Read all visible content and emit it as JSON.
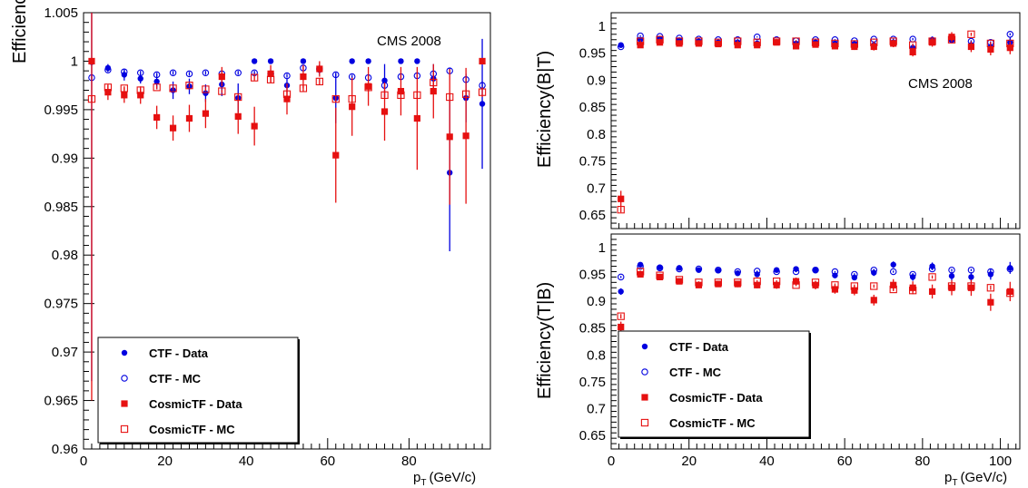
{
  "colors": {
    "ctf": "#0000e0",
    "cosmic": "#e61010",
    "axis": "#000000"
  },
  "chart_data": [
    {
      "type": "scatter",
      "panel": "left",
      "annotation": "CMS 2008",
      "xlabel_main": "p",
      "xlabel_sub": "T",
      "xlabel_units": "(GeV/c)",
      "ylabel": "Efficiency",
      "xlim": [
        0,
        100
      ],
      "ylim": [
        0.96,
        1.005
      ],
      "xticks": [
        0,
        20,
        40,
        60,
        80
      ],
      "xtick_labels": [
        "0",
        "20",
        "40",
        "60",
        "80"
      ],
      "yticks": [
        0.96,
        0.965,
        0.97,
        0.975,
        0.98,
        0.985,
        0.99,
        0.995,
        1,
        1.005
      ],
      "ytick_labels": [
        "0.96",
        "0.965",
        "0.97",
        "0.975",
        "0.98",
        "0.985",
        "0.99",
        "0.995",
        "1",
        "1.005"
      ],
      "legend": "bottom-left",
      "x": [
        2,
        6,
        10,
        14,
        18,
        22,
        26,
        30,
        34,
        38,
        42,
        46,
        50,
        54,
        58,
        62,
        66,
        70,
        74,
        78,
        82,
        86,
        90,
        94,
        98
      ],
      "series": [
        {
          "name": "CTF - Data",
          "marker": "filled-circle",
          "color": "#0000e0",
          "values": [
            0.9999,
            0.9993,
            0.9986,
            0.9982,
            0.9979,
            0.997,
            0.9974,
            0.9967,
            0.9976,
            0.9962,
            1.0,
            1.0,
            0.9975,
            1.0,
            0.9991,
            0.9962,
            1.0,
            1.0,
            0.998,
            1.0,
            1.0,
            0.9982,
            0.9885,
            0.9962,
            0.9956
          ],
          "err": [
            0.0329,
            0.0004,
            0.0006,
            0.0005,
            0.0008,
            0.0009,
            0.0008,
            0.0009,
            0.0012,
            0.0015,
            0.0,
            0.0,
            0.0007,
            0.0,
            0.0005,
            0.0026,
            0.0,
            0.0,
            0.0017,
            0.0,
            0.0,
            0.0015,
            0.0081,
            0.0025,
            0.0067
          ]
        },
        {
          "name": "CTF - MC",
          "marker": "open-circle",
          "color": "#0000e0",
          "values": [
            0.9983,
            0.9991,
            0.9989,
            0.9988,
            0.9986,
            0.9988,
            0.9987,
            0.9988,
            0.9987,
            0.9988,
            0.9988,
            0.9987,
            0.9985,
            0.9993,
            0.9992,
            0.9986,
            0.9984,
            0.9983,
            0.9975,
            0.9984,
            0.9985,
            0.9987,
            0.999,
            0.9981,
            0.9975
          ],
          "err": [
            0.0003,
            0.0002,
            0.0002,
            0.0002,
            0.0002,
            0.0002,
            0.0002,
            0.0002,
            0.0002,
            0.0002,
            0.0002,
            0.0002,
            0.0002,
            0.0002,
            0.0002,
            0.0002,
            0.0002,
            0.0003,
            0.0003,
            0.0003,
            0.0003,
            0.0003,
            0.0003,
            0.0004,
            0.0004
          ]
        },
        {
          "name": "CosmicTF - Data",
          "marker": "filled-square",
          "color": "#e61010",
          "values": [
            1.0,
            0.9968,
            0.9965,
            0.9965,
            0.9942,
            0.9931,
            0.9941,
            0.9946,
            0.9984,
            0.9943,
            0.9933,
            0.9987,
            0.9961,
            0.9984,
            0.9992,
            0.9903,
            0.9953,
            0.9974,
            0.9948,
            0.9969,
            0.9941,
            0.9969,
            0.9922,
            0.9923,
            1.0
          ],
          "err": [
            0.035,
            0.0008,
            0.0008,
            0.0009,
            0.0012,
            0.0013,
            0.0014,
            0.0015,
            0.001,
            0.0018,
            0.002,
            0.0009,
            0.0016,
            0.0012,
            0.0008,
            0.0049,
            0.003,
            0.002,
            0.003,
            0.0025,
            0.0053,
            0.0028,
            0.007,
            0.007,
            0.0
          ]
        },
        {
          "name": "CosmicTF - MC",
          "marker": "open-square",
          "color": "#e61010",
          "values": [
            0.9961,
            0.9973,
            0.9972,
            0.997,
            0.9973,
            0.9972,
            0.9975,
            0.9971,
            0.9969,
            0.9963,
            0.9983,
            0.9981,
            0.9966,
            0.9972,
            0.9979,
            0.9961,
            0.9961,
            0.9973,
            0.9965,
            0.9965,
            0.9965,
            0.9978,
            0.9963,
            0.9966,
            0.9968
          ],
          "err": [
            0.0003,
            0.0002,
            0.0002,
            0.0002,
            0.0002,
            0.0002,
            0.0002,
            0.0002,
            0.0002,
            0.0003,
            0.0003,
            0.0003,
            0.0003,
            0.0003,
            0.0003,
            0.0003,
            0.0003,
            0.0004,
            0.0004,
            0.0004,
            0.0004,
            0.0004,
            0.0004,
            0.0005,
            0.0005
          ]
        }
      ]
    },
    {
      "type": "scatter",
      "panel": "right-top",
      "annotation": "CMS 2008",
      "ylabel": "Efficiency(B|T)",
      "xlim": [
        0,
        105
      ],
      "ylim": [
        0.625,
        1.025
      ],
      "yticks": [
        0.65,
        0.7,
        0.75,
        0.8,
        0.85,
        0.9,
        0.95,
        1
      ],
      "ytick_labels": [
        "0.65",
        "0.7",
        "0.75",
        "0.8",
        "0.85",
        "0.9",
        "0.95",
        "1"
      ],
      "legend": "none",
      "x": [
        2.5,
        7.5,
        12.5,
        17.5,
        22.5,
        27.5,
        32.5,
        37.5,
        42.5,
        47.5,
        52.5,
        57.5,
        62.5,
        67.5,
        72.5,
        77.5,
        82.5,
        87.5,
        92.5,
        97.5,
        102.5
      ],
      "series": [
        {
          "name": "CTF - Data",
          "marker": "filled-circle",
          "color": "#0000e0",
          "values": [
            0.965,
            0.975,
            0.977,
            0.974,
            0.972,
            0.97,
            0.97,
            0.968,
            0.97,
            0.968,
            0.97,
            0.968,
            0.967,
            0.965,
            0.97,
            0.96,
            0.975,
            0.975,
            0.965,
            0.962,
            0.97
          ],
          "err": [
            0.004,
            0.003,
            0.003,
            0.003,
            0.003,
            0.003,
            0.003,
            0.003,
            0.003,
            0.004,
            0.004,
            0.004,
            0.005,
            0.005,
            0.005,
            0.006,
            0.006,
            0.007,
            0.008,
            0.009,
            0.01
          ]
        },
        {
          "name": "CTF - MC",
          "marker": "open-circle",
          "color": "#0000e0",
          "values": [
            0.962,
            0.982,
            0.981,
            0.978,
            0.976,
            0.975,
            0.975,
            0.98,
            0.975,
            0.973,
            0.975,
            0.975,
            0.973,
            0.976,
            0.976,
            0.976,
            0.973,
            0.975,
            0.972,
            0.97,
            0.985
          ],
          "err": [
            0.002,
            0.001,
            0.001,
            0.001,
            0.001,
            0.001,
            0.001,
            0.001,
            0.001,
            0.001,
            0.001,
            0.001,
            0.001,
            0.001,
            0.001,
            0.002,
            0.002,
            0.002,
            0.002,
            0.002,
            0.002
          ]
        },
        {
          "name": "CosmicTF - Data",
          "marker": "filled-square",
          "color": "#e61010",
          "values": [
            0.68,
            0.965,
            0.97,
            0.968,
            0.968,
            0.967,
            0.965,
            0.965,
            0.97,
            0.963,
            0.966,
            0.963,
            0.962,
            0.962,
            0.968,
            0.952,
            0.97,
            0.98,
            0.962,
            0.957,
            0.96
          ],
          "err": [
            0.015,
            0.005,
            0.004,
            0.004,
            0.004,
            0.004,
            0.004,
            0.004,
            0.005,
            0.005,
            0.005,
            0.005,
            0.006,
            0.007,
            0.007,
            0.008,
            0.008,
            0.009,
            0.01,
            0.011,
            0.012
          ]
        },
        {
          "name": "CosmicTF - MC",
          "marker": "open-square",
          "color": "#e61010",
          "values": [
            0.66,
            0.972,
            0.975,
            0.972,
            0.972,
            0.97,
            0.972,
            0.97,
            0.972,
            0.972,
            0.97,
            0.968,
            0.967,
            0.97,
            0.972,
            0.965,
            0.972,
            0.975,
            0.985,
            0.968,
            0.968
          ],
          "err": [
            0.005,
            0.002,
            0.002,
            0.002,
            0.002,
            0.002,
            0.002,
            0.002,
            0.002,
            0.002,
            0.002,
            0.002,
            0.002,
            0.002,
            0.002,
            0.003,
            0.003,
            0.003,
            0.003,
            0.003,
            0.003
          ]
        }
      ]
    },
    {
      "type": "scatter",
      "panel": "right-bottom",
      "xlabel_main": "p",
      "xlabel_sub": "T",
      "xlabel_units": "(GeV/c)",
      "ylabel": "Efficiency(T|B)",
      "xlim": [
        0,
        105
      ],
      "ylim": [
        0.625,
        1.025
      ],
      "xticks": [
        0,
        20,
        40,
        60,
        80,
        100
      ],
      "xtick_labels": [
        "0",
        "20",
        "40",
        "60",
        "80",
        "100"
      ],
      "yticks": [
        0.65,
        0.7,
        0.75,
        0.8,
        0.85,
        0.9,
        0.95,
        1
      ],
      "ytick_labels": [
        "0.65",
        "0.7",
        "0.75",
        "0.8",
        "0.85",
        "0.9",
        "0.95",
        "1"
      ],
      "legend": "bottom-left",
      "x": [
        2.5,
        7.5,
        12.5,
        17.5,
        22.5,
        27.5,
        32.5,
        37.5,
        42.5,
        47.5,
        52.5,
        57.5,
        62.5,
        67.5,
        72.5,
        77.5,
        82.5,
        87.5,
        92.5,
        97.5,
        102.5
      ],
      "series": [
        {
          "name": "CTF - Data",
          "marker": "filled-circle",
          "color": "#0000e0",
          "values": [
            0.918,
            0.968,
            0.963,
            0.962,
            0.958,
            0.957,
            0.952,
            0.95,
            0.958,
            0.96,
            0.958,
            0.948,
            0.944,
            0.953,
            0.968,
            0.945,
            0.965,
            0.947,
            0.945,
            0.95,
            0.962
          ],
          "err": [
            0.006,
            0.003,
            0.003,
            0.003,
            0.003,
            0.003,
            0.004,
            0.004,
            0.004,
            0.004,
            0.005,
            0.005,
            0.005,
            0.006,
            0.006,
            0.007,
            0.007,
            0.008,
            0.009,
            0.01,
            0.011
          ]
        },
        {
          "name": "CTF - MC",
          "marker": "open-circle",
          "color": "#0000e0",
          "values": [
            0.945,
            0.965,
            0.962,
            0.96,
            0.96,
            0.958,
            0.955,
            0.956,
            0.955,
            0.955,
            0.958,
            0.955,
            0.95,
            0.958,
            0.955,
            0.95,
            0.96,
            0.958,
            0.958,
            0.955,
            0.96
          ],
          "err": [
            0.002,
            0.001,
            0.001,
            0.001,
            0.001,
            0.001,
            0.001,
            0.001,
            0.001,
            0.001,
            0.001,
            0.001,
            0.002,
            0.002,
            0.002,
            0.002,
            0.002,
            0.002,
            0.002,
            0.002,
            0.002
          ]
        },
        {
          "name": "CosmicTF - Data",
          "marker": "filled-square",
          "color": "#e61010",
          "values": [
            0.852,
            0.95,
            0.945,
            0.937,
            0.93,
            0.932,
            0.932,
            0.93,
            0.93,
            0.937,
            0.93,
            0.922,
            0.92,
            0.902,
            0.93,
            0.925,
            0.918,
            0.925,
            0.925,
            0.898,
            0.918
          ],
          "err": [
            0.01,
            0.005,
            0.005,
            0.005,
            0.005,
            0.005,
            0.006,
            0.006,
            0.007,
            0.007,
            0.008,
            0.008,
            0.009,
            0.01,
            0.011,
            0.012,
            0.013,
            0.014,
            0.015,
            0.016,
            0.018
          ]
        },
        {
          "name": "CosmicTF - MC",
          "marker": "open-square",
          "color": "#e61010",
          "values": [
            0.872,
            0.955,
            0.948,
            0.94,
            0.935,
            0.935,
            0.935,
            0.937,
            0.937,
            0.93,
            0.935,
            0.93,
            0.928,
            0.928,
            0.922,
            0.92,
            0.945,
            0.928,
            0.928,
            0.925,
            0.915
          ],
          "err": [
            0.004,
            0.002,
            0.002,
            0.002,
            0.002,
            0.002,
            0.002,
            0.002,
            0.002,
            0.002,
            0.002,
            0.003,
            0.003,
            0.003,
            0.003,
            0.003,
            0.003,
            0.004,
            0.004,
            0.004,
            0.004
          ]
        }
      ]
    }
  ]
}
